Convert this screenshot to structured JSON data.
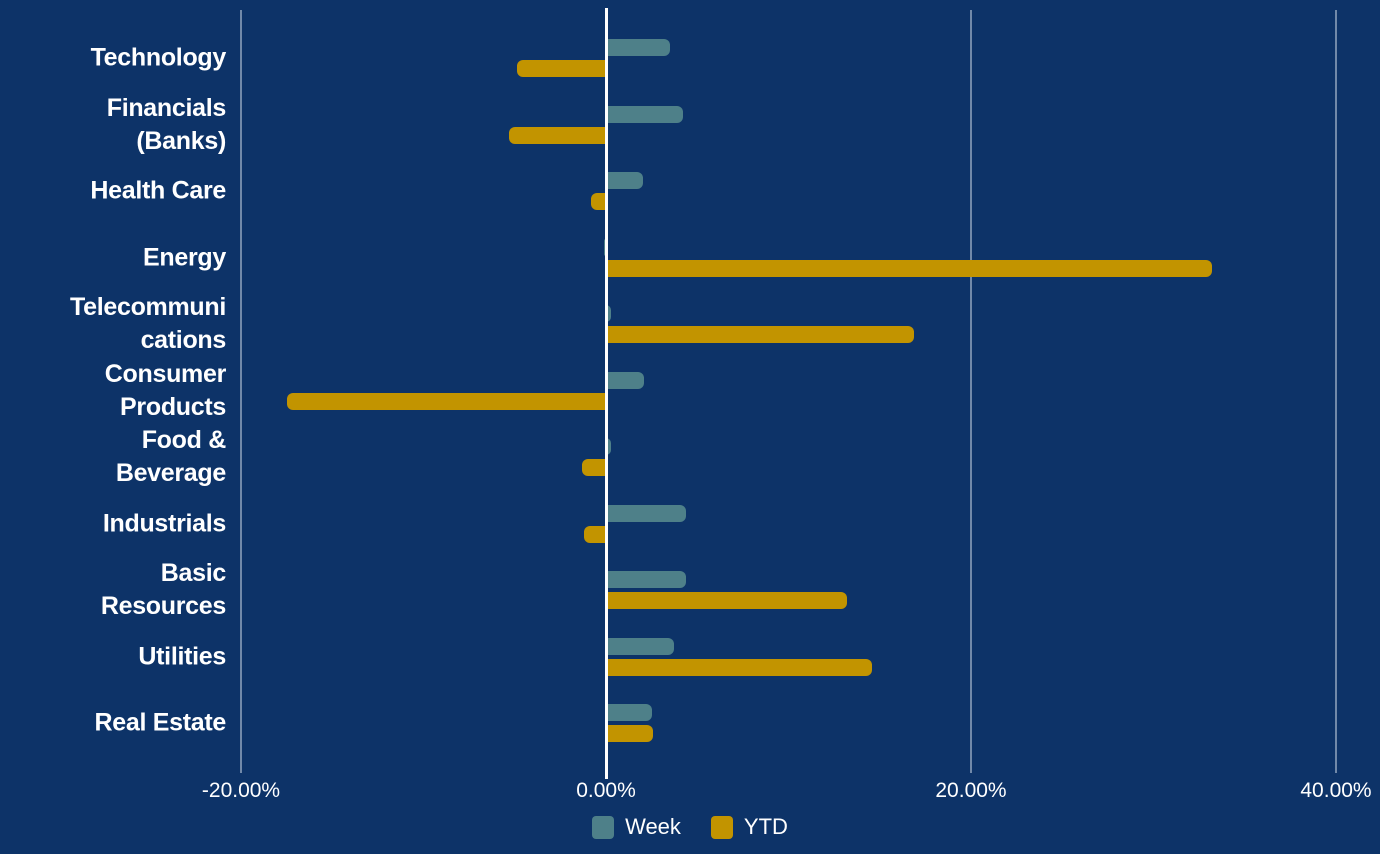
{
  "chart_data": {
    "type": "bar",
    "orientation": "horizontal",
    "title": "",
    "xlabel": "",
    "ylabel": "",
    "background_color": "#0d3368",
    "text_color": "#ffffff",
    "gridline_color": "rgba(235,242,248,0.45)",
    "zero_line_color": "#ffffff",
    "legend_position": "bottom-center",
    "categories": [
      {
        "name": "Technology",
        "lines": [
          "Technology"
        ]
      },
      {
        "name": "Financials (Banks)",
        "lines": [
          "Financials",
          "(Banks)"
        ]
      },
      {
        "name": "Health Care",
        "lines": [
          "Health Care"
        ]
      },
      {
        "name": "Energy",
        "lines": [
          "Energy"
        ]
      },
      {
        "name": "Telecommunications",
        "lines": [
          "Telecommuni",
          "cations"
        ]
      },
      {
        "name": "Consumer Products",
        "lines": [
          "Consumer",
          "Products"
        ]
      },
      {
        "name": "Food & Beverage",
        "lines": [
          "Food &",
          "Beverage"
        ]
      },
      {
        "name": "Industrials",
        "lines": [
          "Industrials"
        ]
      },
      {
        "name": "Basic Resources",
        "lines": [
          "Basic",
          "Resources"
        ]
      },
      {
        "name": "Utilities",
        "lines": [
          "Utilities"
        ]
      },
      {
        "name": "Real Estate",
        "lines": [
          "Real Estate"
        ]
      }
    ],
    "series": [
      {
        "name": "Week",
        "color": "#4e8089",
        "unit": "%",
        "values": [
          3.5,
          4.2,
          2.0,
          -0.1,
          0.3,
          2.1,
          0.3,
          4.4,
          4.4,
          3.7,
          2.5
        ]
      },
      {
        "name": "YTD",
        "color": "#c29400",
        "unit": "%",
        "values": [
          -4.9,
          -5.3,
          -0.8,
          33.2,
          16.9,
          -17.5,
          -1.3,
          -1.2,
          13.2,
          14.6,
          2.6
        ]
      }
    ],
    "x_axis": {
      "ticks": [
        "-20.00%",
        "0.00%",
        "20.00%",
        "40.00%"
      ],
      "tick_values": [
        -20,
        0,
        20,
        40
      ],
      "xlim": [
        -20,
        40
      ],
      "grid": true
    }
  }
}
